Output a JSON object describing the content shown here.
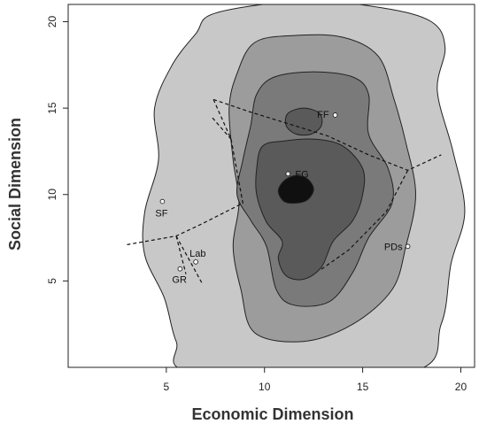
{
  "chart_data": {
    "type": "contour",
    "xlabel": "Economic Dimension",
    "ylabel": "Social Dimension",
    "xlim": [
      0,
      20.7
    ],
    "ylim": [
      0,
      21
    ],
    "xticks": [
      5,
      10,
      15,
      20
    ],
    "yticks": [
      5,
      10,
      15,
      20
    ],
    "levels": [
      {
        "fill": "#c8c8c8",
        "polygon": [
          [
            7.5,
            20.5
          ],
          [
            12,
            21.2
          ],
          [
            16,
            20.8
          ],
          [
            18.5,
            20
          ],
          [
            19.2,
            18.5
          ],
          [
            18.8,
            16
          ],
          [
            19.6,
            12.5
          ],
          [
            20.2,
            9
          ],
          [
            19.5,
            6
          ],
          [
            19,
            2.5
          ],
          [
            17.3,
            -0.3
          ],
          [
            6.5,
            -0.3
          ],
          [
            5.5,
            1.5
          ],
          [
            4.9,
            4
          ],
          [
            3.9,
            6.5
          ],
          [
            3.9,
            9
          ],
          [
            4.6,
            12
          ],
          [
            4.4,
            15
          ],
          [
            5.3,
            17.5
          ],
          [
            6.5,
            19.3
          ]
        ]
      },
      {
        "fill": "#9c9c9c",
        "polygon": [
          [
            9.5,
            18.8
          ],
          [
            11.5,
            19.2
          ],
          [
            14,
            19.1
          ],
          [
            15.8,
            18
          ],
          [
            16.6,
            15.5
          ],
          [
            17.2,
            13
          ],
          [
            17.7,
            10
          ],
          [
            17.2,
            7
          ],
          [
            16.5,
            4.5
          ],
          [
            14.5,
            2.5
          ],
          [
            12,
            1.5
          ],
          [
            9.5,
            2
          ],
          [
            8.8,
            4.5
          ],
          [
            8.4,
            7
          ],
          [
            8.7,
            9.5
          ],
          [
            8.4,
            12
          ],
          [
            8.2,
            15
          ],
          [
            8.6,
            17
          ]
        ]
      },
      {
        "fill": "#7a7a7a",
        "polygon": [
          [
            10.5,
            16.8
          ],
          [
            12.5,
            17.1
          ],
          [
            14.5,
            16.8
          ],
          [
            15.3,
            15.8
          ],
          [
            15.3,
            13.5
          ],
          [
            16.3,
            11.5
          ],
          [
            16.5,
            9.5
          ],
          [
            15.3,
            7.5
          ],
          [
            14.5,
            5.5
          ],
          [
            13.3,
            3.8
          ],
          [
            11.5,
            3.6
          ],
          [
            10.6,
            4.5
          ],
          [
            10.1,
            7
          ],
          [
            9.3,
            8.5
          ],
          [
            8.6,
            10
          ],
          [
            8.9,
            12
          ],
          [
            9.3,
            14
          ],
          [
            9.6,
            15.8
          ]
        ]
      },
      {
        "fill": "#5a5a5a",
        "polygon": [
          [
            9.9,
            12.8
          ],
          [
            11,
            13.1
          ],
          [
            12.6,
            13.2
          ],
          [
            14,
            12.8
          ],
          [
            15,
            11.5
          ],
          [
            15,
            10
          ],
          [
            14.5,
            8.5
          ],
          [
            13.5,
            7.3
          ],
          [
            12.9,
            5.8
          ],
          [
            12,
            5.1
          ],
          [
            11.1,
            5.3
          ],
          [
            10.7,
            6.3
          ],
          [
            10.9,
            7.3
          ],
          [
            10.1,
            8.4
          ],
          [
            9.6,
            10
          ],
          [
            9.6,
            11.5
          ]
        ]
      },
      {
        "fill": "#5a5a5a",
        "polygon": [
          [
            11.2,
            14.7
          ],
          [
            12,
            15
          ],
          [
            12.8,
            14.7
          ],
          [
            12.9,
            14
          ],
          [
            12.4,
            13.5
          ],
          [
            11.6,
            13.5
          ],
          [
            11.1,
            14
          ]
        ]
      },
      {
        "fill": "#101010",
        "polygon": [
          [
            10.7,
            10.2
          ],
          [
            11,
            10.8
          ],
          [
            11.6,
            11.1
          ],
          [
            12.2,
            10.9
          ],
          [
            12.5,
            10.3
          ],
          [
            12.2,
            9.7
          ],
          [
            11.6,
            9.5
          ],
          [
            11,
            9.6
          ]
        ]
      }
    ],
    "boundaries": [
      [
        [
          7.4,
          15.5
        ],
        [
          8.3,
          13.2
        ],
        [
          8.9,
          9.5
        ],
        [
          6.8,
          8.3
        ],
        [
          5.5,
          7.6
        ],
        [
          3,
          7.1
        ]
      ],
      [
        [
          7.4,
          15.5
        ],
        [
          9.2,
          14.8
        ],
        [
          13.2,
          13.4
        ],
        [
          15.3,
          12.3
        ],
        [
          17.3,
          11.4
        ],
        [
          19,
          12.3
        ]
      ],
      [
        [
          17.3,
          11.4
        ],
        [
          16.2,
          9
        ],
        [
          14.3,
          6.8
        ],
        [
          12.8,
          5.6
        ]
      ],
      [
        [
          8.3,
          13.2
        ],
        [
          7.3,
          14.5
        ]
      ],
      [
        [
          5.5,
          7.6
        ],
        [
          6.8,
          4.9
        ]
      ],
      [
        [
          5.5,
          7.6
        ],
        [
          6,
          5.4
        ]
      ]
    ],
    "points": [
      {
        "label": "FF",
        "x": 13.6,
        "y": 14.6
      },
      {
        "label": "FG",
        "x": 11.2,
        "y": 11.2
      },
      {
        "label": "SF",
        "x": 4.8,
        "y": 9.6
      },
      {
        "label": "Lab",
        "x": 6.5,
        "y": 6.1
      },
      {
        "label": "GR",
        "x": 5.7,
        "y": 5.7
      },
      {
        "label": "PDs",
        "x": 17.3,
        "y": 7
      }
    ]
  }
}
